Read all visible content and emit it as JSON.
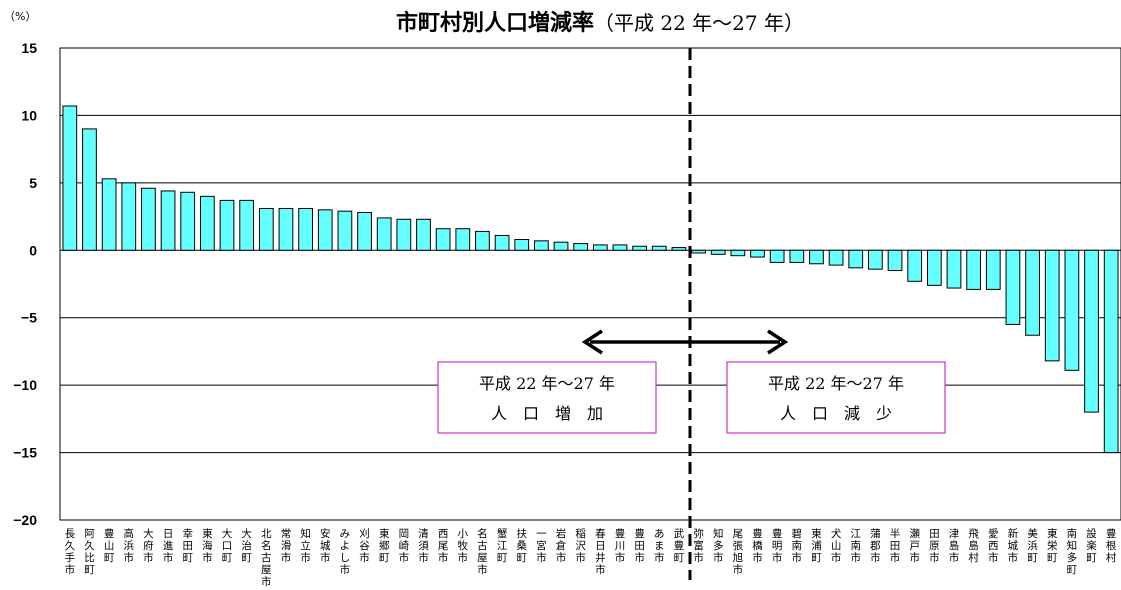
{
  "chart_data": {
    "type": "bar",
    "title": "市町村別人口増減率",
    "title_suffix": "（平成 22 年～27 年）",
    "ylabel": "（%）",
    "xlabel": "",
    "ylim": [
      -20,
      15
    ],
    "yticks": [
      15,
      10,
      5,
      0,
      -5,
      -10,
      -15,
      -20
    ],
    "grid": true,
    "legend": "none",
    "bar_color": "#66FFFF",
    "bar_edge_color": "#000000",
    "categories": [
      "長久手市",
      "阿久比町",
      "豊山町",
      "高浜市",
      "大府市",
      "日進市",
      "幸田町",
      "東海市",
      "大口町",
      "大治町",
      "北名古屋市",
      "常滑市",
      "知立市",
      "安城市",
      "みよし市",
      "刈谷市",
      "東郷町",
      "岡崎市",
      "清須市",
      "西尾市",
      "小牧市",
      "名古屋市",
      "蟹江町",
      "扶桑町",
      "一宮市",
      "岩倉市",
      "稲沢市",
      "春日井市",
      "豊川市",
      "豊田市",
      "あま市",
      "武豊町",
      "弥富市",
      "知多市",
      "尾張旭市",
      "豊橋市",
      "豊明市",
      "碧南市",
      "東浦町",
      "犬山市",
      "江南市",
      "蒲郡市",
      "半田市",
      "瀬戸市",
      "田原市",
      "津島市",
      "飛島村",
      "愛西市",
      "新城市",
      "美浜町",
      "東栄町",
      "南知多町",
      "設楽町",
      "豊根村"
    ],
    "values": [
      10.7,
      9.0,
      5.3,
      5.0,
      4.6,
      4.4,
      4.3,
      4.0,
      3.7,
      3.7,
      3.1,
      3.1,
      3.1,
      3.0,
      2.9,
      2.8,
      2.4,
      2.3,
      2.3,
      1.6,
      1.6,
      1.4,
      1.1,
      0.8,
      0.7,
      0.6,
      0.5,
      0.4,
      0.4,
      0.3,
      0.3,
      0.2,
      -0.2,
      -0.3,
      -0.4,
      -0.5,
      -0.9,
      -0.9,
      -1.0,
      -1.1,
      -1.3,
      -1.4,
      -1.5,
      -2.3,
      -2.6,
      -2.8,
      -2.9,
      -2.9,
      -5.5,
      -6.3,
      -8.2,
      -8.9,
      -12.0,
      -15.0
    ],
    "annotations": [
      {
        "lines": [
          "平成 22 年～27 年",
          "人　口　増　加"
        ]
      },
      {
        "lines": [
          "平成 22 年～27 年",
          "人　口　減　少"
        ]
      }
    ],
    "divider": "after 武豊町 (dashed vertical line)",
    "arrow": "double-headed horizontal arrow across divider"
  }
}
